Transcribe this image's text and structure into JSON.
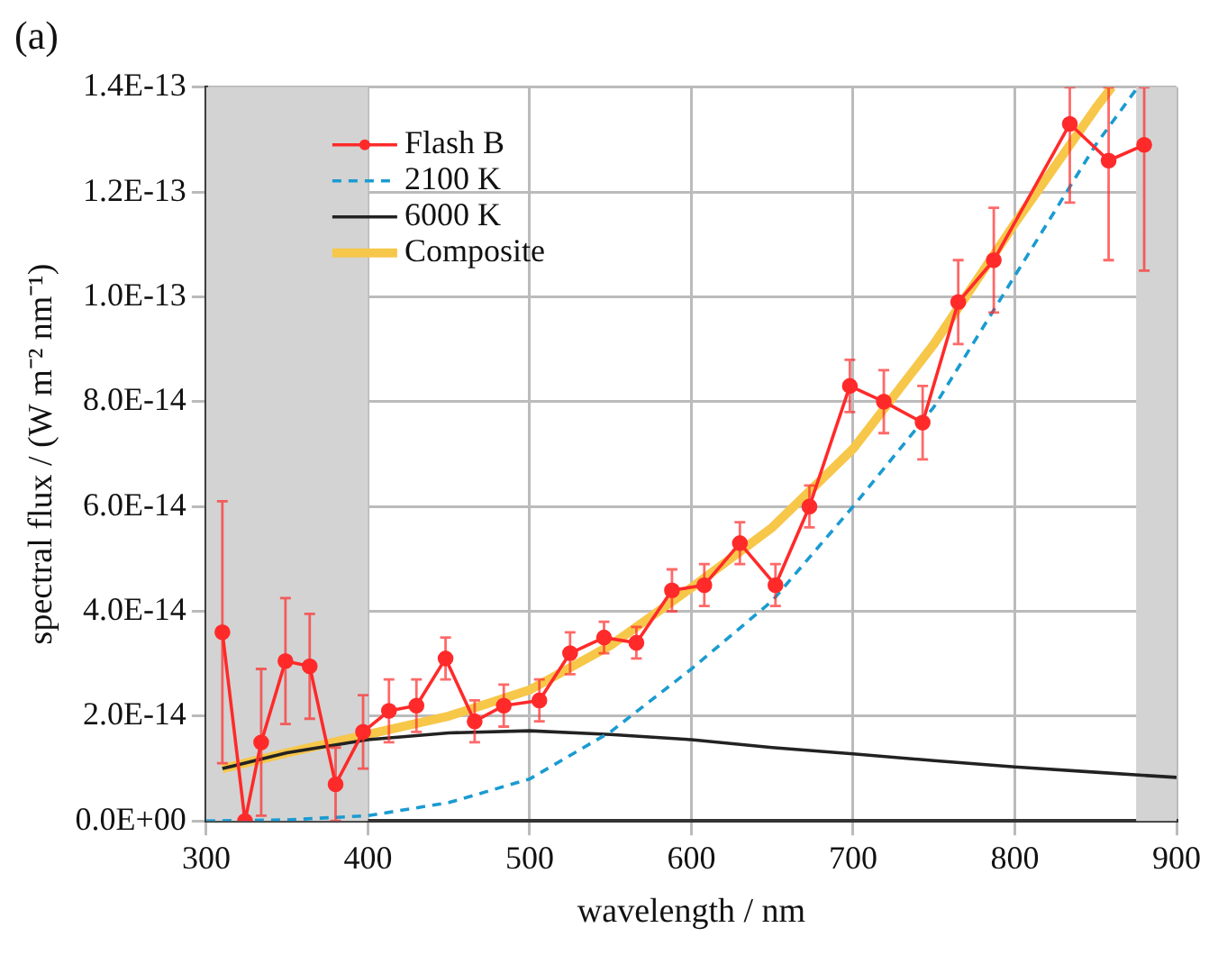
{
  "chart_data": {
    "type": "line",
    "title": "(a)",
    "xlabel": "wavelength / nm",
    "ylabel": "spectral flux / (W m⁻² nm⁻¹)",
    "xlim": [
      300,
      900
    ],
    "xticks": [
      300,
      400,
      500,
      600,
      700,
      800,
      900
    ],
    "ylim": [
      0,
      1.4e-13
    ],
    "yticks": [
      {
        "value": 0,
        "label": "0.0E+00"
      },
      {
        "value": 2e-14,
        "label": "2.0E-14"
      },
      {
        "value": 4e-14,
        "label": "4.0E-14"
      },
      {
        "value": 6e-14,
        "label": "6.0E-14"
      },
      {
        "value": 8e-14,
        "label": "8.0E-14"
      },
      {
        "value": 1e-13,
        "label": "1.0E-13"
      },
      {
        "value": 1.2e-13,
        "label": "1.2E-13"
      },
      {
        "value": 1.4e-13,
        "label": "1.4E-13"
      }
    ],
    "grid": true,
    "legend": "top left",
    "bands": [
      {
        "axis": "x",
        "from": 300,
        "to": 400,
        "color": "#d3d3d3"
      },
      {
        "axis": "x",
        "from": 875,
        "to": 900,
        "color": "#d3d3d3"
      }
    ],
    "series": [
      {
        "name": "Flash B",
        "color": "#ff2a2a",
        "marker": "circle",
        "line_style": "solid",
        "x": [
          310,
          324,
          334,
          349,
          364,
          380,
          397,
          413,
          430,
          448,
          466,
          484,
          506,
          525,
          546,
          566,
          588,
          608,
          630,
          652,
          673,
          698,
          719,
          743,
          765,
          787,
          834,
          858,
          880
        ],
        "values": [
          3.6e-14,
          0,
          1.5e-14,
          3.05e-14,
          2.95e-14,
          7e-15,
          1.7e-14,
          2.1e-14,
          2.2e-14,
          3.1e-14,
          1.9e-14,
          2.2e-14,
          2.3e-14,
          3.2e-14,
          3.5e-14,
          3.4e-14,
          4.4e-14,
          4.5e-14,
          5.3e-14,
          4.5e-14,
          6e-14,
          8.3e-14,
          8e-14,
          7.6e-14,
          9.9e-14,
          1.07e-13,
          1.33e-13,
          1.26e-13,
          1.29e-13
        ],
        "errors": [
          2.5e-14,
          null,
          1.4e-14,
          1.2e-14,
          1e-14,
          7e-15,
          7e-15,
          6e-15,
          5e-15,
          4e-15,
          4e-15,
          4e-15,
          4e-15,
          4e-15,
          3e-15,
          3e-15,
          4e-15,
          4e-15,
          4e-15,
          4e-15,
          4e-15,
          5e-15,
          6e-15,
          7e-15,
          8e-15,
          1e-14,
          [
            1.18e-13,
            1.4e-13
          ],
          [
            1.07e-13,
            1.4e-13
          ],
          [
            1.05e-13,
            1.4e-13
          ]
        ]
      },
      {
        "name": "2100 K",
        "color": "#1a9bd1",
        "marker": "none",
        "line_style": "dashed",
        "x": [
          300,
          350,
          400,
          450,
          500,
          550,
          600,
          650,
          700,
          750,
          800,
          850,
          876
        ],
        "values": [
          0,
          2e-16,
          1e-15,
          3.5e-15,
          8e-15,
          1.7e-14,
          2.9e-14,
          4.2e-14,
          6e-14,
          7.9e-14,
          1.04e-13,
          1.29e-13,
          1.4e-13
        ]
      },
      {
        "name": "6000 K",
        "color": "#222222",
        "marker": "none",
        "line_style": "solid",
        "x": [
          310,
          350,
          400,
          450,
          500,
          550,
          600,
          650,
          700,
          750,
          800,
          850,
          900
        ],
        "values": [
          1e-14,
          1.3e-14,
          1.55e-14,
          1.68e-14,
          1.72e-14,
          1.65e-14,
          1.55e-14,
          1.4e-14,
          1.28e-14,
          1.15e-14,
          1.03e-14,
          9.3e-15,
          8.3e-15
        ]
      },
      {
        "name": "Composite",
        "color": "#f7c74a",
        "marker": "none",
        "line_style": "solid",
        "x": [
          310,
          350,
          400,
          450,
          500,
          550,
          600,
          650,
          700,
          750,
          800,
          850,
          860
        ],
        "values": [
          1e-14,
          1.3e-14,
          1.65e-14,
          2e-14,
          2.5e-14,
          3.35e-14,
          4.45e-14,
          5.6e-14,
          7.1e-14,
          9.1e-14,
          1.14e-13,
          1.36e-13,
          1.4e-13
        ]
      }
    ]
  }
}
